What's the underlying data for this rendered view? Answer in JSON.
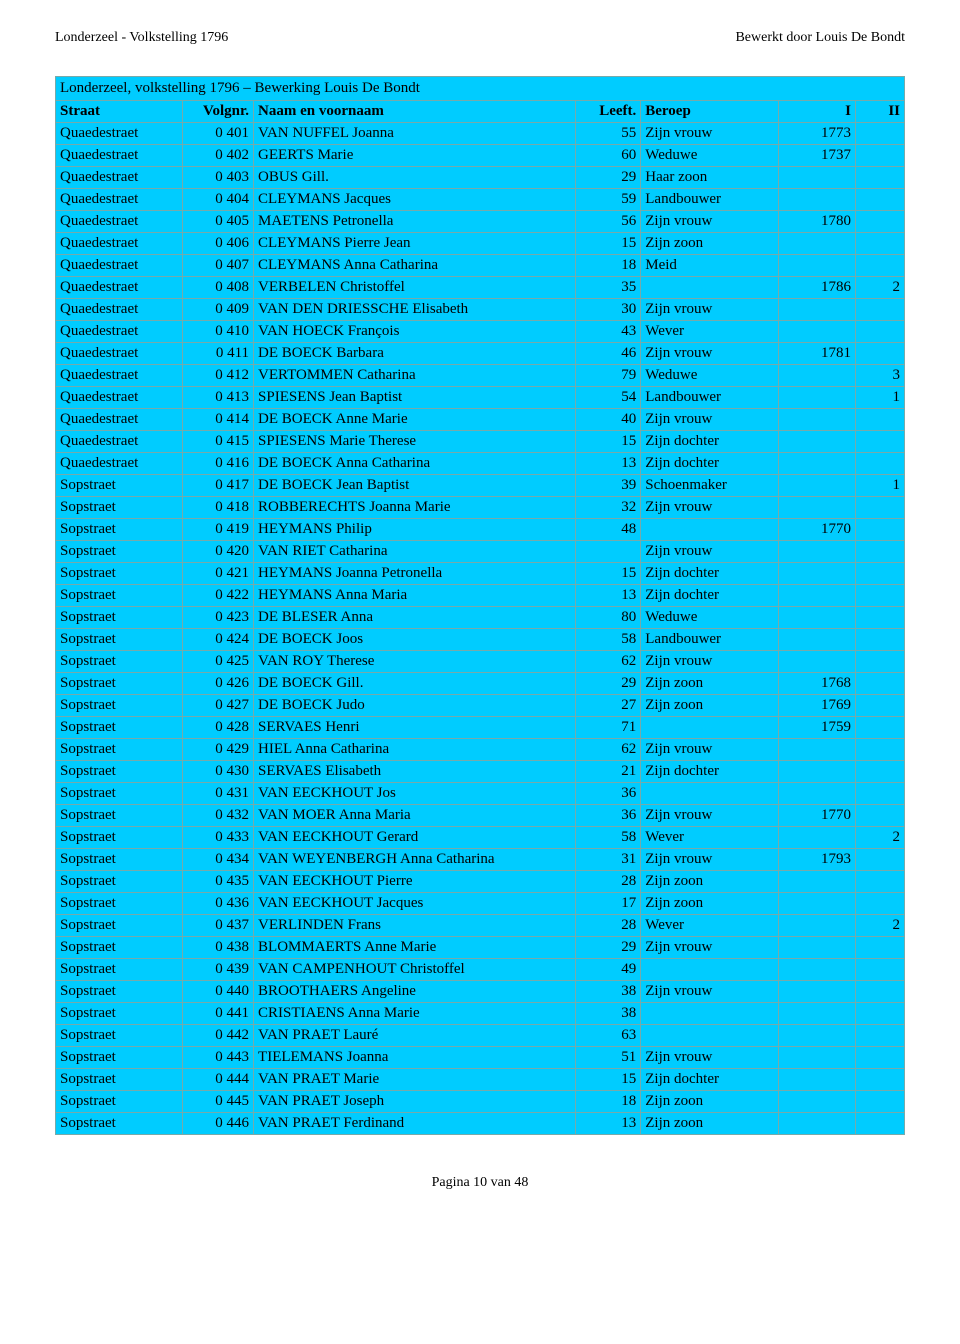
{
  "header": {
    "left": "Londerzeel - Volkstelling 1796",
    "right": "Bewerkt door Louis De Bondt"
  },
  "section_title": "Londerzeel, volkstelling 1796 – Bewerking Louis De Bondt",
  "columns": {
    "straat": "Straat",
    "volgnr": "Volgnr.",
    "naam": "Naam en voornaam",
    "leeft": "Leeft.",
    "beroep": "Beroep",
    "i": "I",
    "ii": "II"
  },
  "rows": [
    {
      "straat": "Quaedestraet",
      "volgnr": "0 401",
      "naam": "VAN NUFFEL Joanna",
      "leeft": "55",
      "beroep": "Zijn vrouw",
      "i": "1773",
      "ii": ""
    },
    {
      "straat": "Quaedestraet",
      "volgnr": "0 402",
      "naam": "GEERTS Marie",
      "leeft": "60",
      "beroep": "Weduwe",
      "i": "1737",
      "ii": ""
    },
    {
      "straat": "Quaedestraet",
      "volgnr": "0 403",
      "naam": "OBUS Gill.",
      "leeft": "29",
      "beroep": "Haar zoon",
      "i": "",
      "ii": ""
    },
    {
      "straat": "Quaedestraet",
      "volgnr": "0 404",
      "naam": "CLEYMANS Jacques",
      "leeft": "59",
      "beroep": "Landbouwer",
      "i": "",
      "ii": ""
    },
    {
      "straat": "Quaedestraet",
      "volgnr": "0 405",
      "naam": "MAETENS Petronella",
      "leeft": "56",
      "beroep": "Zijn vrouw",
      "i": "1780",
      "ii": ""
    },
    {
      "straat": "Quaedestraet",
      "volgnr": "0 406",
      "naam": "CLEYMANS Pierre Jean",
      "leeft": "15",
      "beroep": "Zijn zoon",
      "i": "",
      "ii": ""
    },
    {
      "straat": "Quaedestraet",
      "volgnr": "0 407",
      "naam": "CLEYMANS Anna Catharina",
      "leeft": "18",
      "beroep": "Meid",
      "i": "",
      "ii": ""
    },
    {
      "straat": "Quaedestraet",
      "volgnr": "0 408",
      "naam": "VERBELEN Christoffel",
      "leeft": "35",
      "beroep": "",
      "i": "1786",
      "ii": "2"
    },
    {
      "straat": "Quaedestraet",
      "volgnr": "0 409",
      "naam": "VAN DEN DRIESSCHE Elisabeth",
      "leeft": "30",
      "beroep": "Zijn vrouw",
      "i": "",
      "ii": ""
    },
    {
      "straat": "Quaedestraet",
      "volgnr": "0 410",
      "naam": "VAN HOECK François",
      "leeft": "43",
      "beroep": "Wever",
      "i": "",
      "ii": ""
    },
    {
      "straat": "Quaedestraet",
      "volgnr": "0 411",
      "naam": "DE BOECK Barbara",
      "leeft": "46",
      "beroep": "Zijn vrouw",
      "i": "1781",
      "ii": ""
    },
    {
      "straat": "Quaedestraet",
      "volgnr": "0 412",
      "naam": "VERTOMMEN Catharina",
      "leeft": "79",
      "beroep": "Weduwe",
      "i": "",
      "ii": "3"
    },
    {
      "straat": "Quaedestraet",
      "volgnr": "0 413",
      "naam": "SPIESENS Jean Baptist",
      "leeft": "54",
      "beroep": "Landbouwer",
      "i": "",
      "ii": "1"
    },
    {
      "straat": "Quaedestraet",
      "volgnr": "0 414",
      "naam": "DE BOECK Anne Marie",
      "leeft": "40",
      "beroep": "Zijn vrouw",
      "i": "",
      "ii": ""
    },
    {
      "straat": "Quaedestraet",
      "volgnr": "0 415",
      "naam": "SPIESENS Marie Therese",
      "leeft": "15",
      "beroep": "Zijn dochter",
      "i": "",
      "ii": ""
    },
    {
      "straat": "Quaedestraet",
      "volgnr": "0 416",
      "naam": "DE BOECK Anna Catharina",
      "leeft": "13",
      "beroep": "Zijn dochter",
      "i": "",
      "ii": ""
    },
    {
      "straat": "Sopstraet",
      "volgnr": "0 417",
      "naam": "DE BOECK Jean Baptist",
      "leeft": "39",
      "beroep": "Schoenmaker",
      "i": "",
      "ii": "1"
    },
    {
      "straat": "Sopstraet",
      "volgnr": "0 418",
      "naam": "ROBBERECHTS Joanna Marie",
      "leeft": "32",
      "beroep": "Zijn vrouw",
      "i": "",
      "ii": ""
    },
    {
      "straat": "Sopstraet",
      "volgnr": "0 419",
      "naam": "HEYMANS Philip",
      "leeft": "48",
      "beroep": "",
      "i": "1770",
      "ii": ""
    },
    {
      "straat": "Sopstraet",
      "volgnr": "0 420",
      "naam": "VAN RIET Catharina",
      "leeft": "",
      "beroep": "Zijn vrouw",
      "i": "",
      "ii": ""
    },
    {
      "straat": "Sopstraet",
      "volgnr": "0 421",
      "naam": "HEYMANS Joanna Petronella",
      "leeft": "15",
      "beroep": "Zijn dochter",
      "i": "",
      "ii": ""
    },
    {
      "straat": "Sopstraet",
      "volgnr": "0 422",
      "naam": "HEYMANS Anna Maria",
      "leeft": "13",
      "beroep": "Zijn dochter",
      "i": "",
      "ii": ""
    },
    {
      "straat": "Sopstraet",
      "volgnr": "0 423",
      "naam": "DE BLESER Anna",
      "leeft": "80",
      "beroep": "Weduwe",
      "i": "",
      "ii": ""
    },
    {
      "straat": "Sopstraet",
      "volgnr": "0 424",
      "naam": "DE BOECK Joos",
      "leeft": "58",
      "beroep": "Landbouwer",
      "i": "",
      "ii": ""
    },
    {
      "straat": "Sopstraet",
      "volgnr": "0 425",
      "naam": "VAN ROY Therese",
      "leeft": "62",
      "beroep": "Zijn vrouw",
      "i": "",
      "ii": ""
    },
    {
      "straat": "Sopstraet",
      "volgnr": "0 426",
      "naam": "DE BOECK Gill.",
      "leeft": "29",
      "beroep": "Zijn zoon",
      "i": "1768",
      "ii": ""
    },
    {
      "straat": "Sopstraet",
      "volgnr": "0 427",
      "naam": "DE BOECK Judo",
      "leeft": "27",
      "beroep": "Zijn zoon",
      "i": "1769",
      "ii": ""
    },
    {
      "straat": "Sopstraet",
      "volgnr": "0 428",
      "naam": "SERVAES Henri",
      "leeft": "71",
      "beroep": "",
      "i": "1759",
      "ii": ""
    },
    {
      "straat": "Sopstraet",
      "volgnr": "0 429",
      "naam": "HIEL Anna Catharina",
      "leeft": "62",
      "beroep": "Zijn vrouw",
      "i": "",
      "ii": ""
    },
    {
      "straat": "Sopstraet",
      "volgnr": "0 430",
      "naam": "SERVAES Elisabeth",
      "leeft": "21",
      "beroep": "Zijn dochter",
      "i": "",
      "ii": ""
    },
    {
      "straat": "Sopstraet",
      "volgnr": "0 431",
      "naam": "VAN EECKHOUT Jos",
      "leeft": "36",
      "beroep": "",
      "i": "",
      "ii": ""
    },
    {
      "straat": "Sopstraet",
      "volgnr": "0 432",
      "naam": "VAN MOER Anna Maria",
      "leeft": "36",
      "beroep": "Zijn vrouw",
      "i": "1770",
      "ii": ""
    },
    {
      "straat": "Sopstraet",
      "volgnr": "0 433",
      "naam": "VAN EECKHOUT Gerard",
      "leeft": "58",
      "beroep": "Wever",
      "i": "",
      "ii": "2"
    },
    {
      "straat": "Sopstraet",
      "volgnr": "0 434",
      "naam": "VAN WEYENBERGH Anna Catharina",
      "leeft": "31",
      "beroep": "Zijn vrouw",
      "i": "1793",
      "ii": ""
    },
    {
      "straat": "Sopstraet",
      "volgnr": "0 435",
      "naam": "VAN EECKHOUT Pierre",
      "leeft": "28",
      "beroep": "Zijn zoon",
      "i": "",
      "ii": ""
    },
    {
      "straat": "Sopstraet",
      "volgnr": "0 436",
      "naam": "VAN EECKHOUT Jacques",
      "leeft": "17",
      "beroep": "Zijn zoon",
      "i": "",
      "ii": ""
    },
    {
      "straat": "Sopstraet",
      "volgnr": "0 437",
      "naam": "VERLINDEN Frans",
      "leeft": "28",
      "beroep": "Wever",
      "i": "",
      "ii": "2"
    },
    {
      "straat": "Sopstraet",
      "volgnr": "0 438",
      "naam": "BLOMMAERTS Anne Marie",
      "leeft": "29",
      "beroep": "Zijn vrouw",
      "i": "",
      "ii": ""
    },
    {
      "straat": "Sopstraet",
      "volgnr": "0 439",
      "naam": "VAN CAMPENHOUT Christoffel",
      "leeft": "49",
      "beroep": "",
      "i": "",
      "ii": ""
    },
    {
      "straat": "Sopstraet",
      "volgnr": "0 440",
      "naam": "BROOTHAERS Angeline",
      "leeft": "38",
      "beroep": "Zijn vrouw",
      "i": "",
      "ii": ""
    },
    {
      "straat": "Sopstraet",
      "volgnr": "0 441",
      "naam": "CRISTIAENS Anna Marie",
      "leeft": "38",
      "beroep": "",
      "i": "",
      "ii": ""
    },
    {
      "straat": "Sopstraet",
      "volgnr": "0 442",
      "naam": "VAN PRAET Lauré",
      "leeft": "63",
      "beroep": "",
      "i": "",
      "ii": ""
    },
    {
      "straat": "Sopstraet",
      "volgnr": "0 443",
      "naam": "TIELEMANS Joanna",
      "leeft": "51",
      "beroep": "Zijn vrouw",
      "i": "",
      "ii": ""
    },
    {
      "straat": "Sopstraet",
      "volgnr": "0 444",
      "naam": "VAN PRAET Marie",
      "leeft": "15",
      "beroep": "Zijn dochter",
      "i": "",
      "ii": ""
    },
    {
      "straat": "Sopstraet",
      "volgnr": "0 445",
      "naam": "VAN PRAET Joseph",
      "leeft": "18",
      "beroep": "Zijn zoon",
      "i": "",
      "ii": ""
    },
    {
      "straat": "Sopstraet",
      "volgnr": "0 446",
      "naam": "VAN PRAET Ferdinand",
      "leeft": "13",
      "beroep": "Zijn zoon",
      "i": "",
      "ii": ""
    }
  ],
  "footer": "Pagina 10 van 48"
}
